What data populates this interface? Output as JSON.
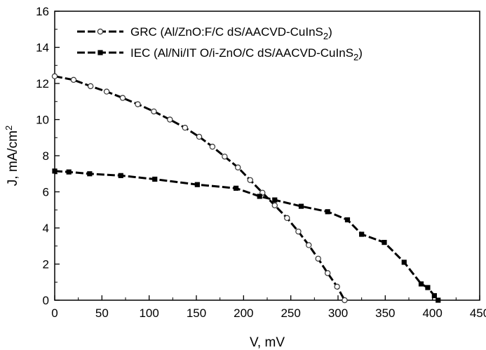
{
  "chart_data": {
    "type": "line",
    "xlabel": "V, mV",
    "ylabel_main": "J, mA/cm",
    "ylabel_sup": "2",
    "xlim": [
      0,
      450
    ],
    "ylim": [
      0,
      16
    ],
    "xticks": [
      "0",
      "50",
      "100",
      "150",
      "200",
      "250",
      "300",
      "350",
      "400",
      "450"
    ],
    "yticks": [
      "0",
      "2",
      "4",
      "6",
      "8",
      "10",
      "12",
      "14",
      "16"
    ],
    "grid": false,
    "legend_position": "top",
    "series": [
      {
        "name_main": "GRC (Al/ZnO:F/C dS/AACVD-CuInS",
        "name_sub": "2",
        "name_end": ")",
        "marker": "circle-open",
        "x": [
          0,
          20,
          38,
          55,
          72,
          88,
          105,
          122,
          138,
          153,
          167,
          180,
          194,
          207,
          220,
          233,
          246,
          258,
          269,
          279,
          289,
          299,
          307
        ],
        "y": [
          12.4,
          12.2,
          11.85,
          11.55,
          11.2,
          10.85,
          10.45,
          10.0,
          9.55,
          9.05,
          8.5,
          7.95,
          7.35,
          6.65,
          5.95,
          5.25,
          4.55,
          3.8,
          3.05,
          2.3,
          1.5,
          0.75,
          0.0
        ]
      },
      {
        "name_main": "IEC (Al/Ni/IT O/i-ZnO/C dS/AACVD-CuInS",
        "name_sub": "2",
        "name_end": ")",
        "marker": "square-filled",
        "x": [
          0,
          15,
          37,
          70,
          106,
          151,
          192,
          217,
          233,
          261,
          289,
          310,
          325,
          349,
          370,
          388,
          395,
          402,
          406
        ],
        "y": [
          7.15,
          7.1,
          7.0,
          6.9,
          6.7,
          6.4,
          6.2,
          5.75,
          5.55,
          5.2,
          4.9,
          4.45,
          3.65,
          3.2,
          2.1,
          0.9,
          0.7,
          0.25,
          0.0
        ]
      }
    ]
  }
}
